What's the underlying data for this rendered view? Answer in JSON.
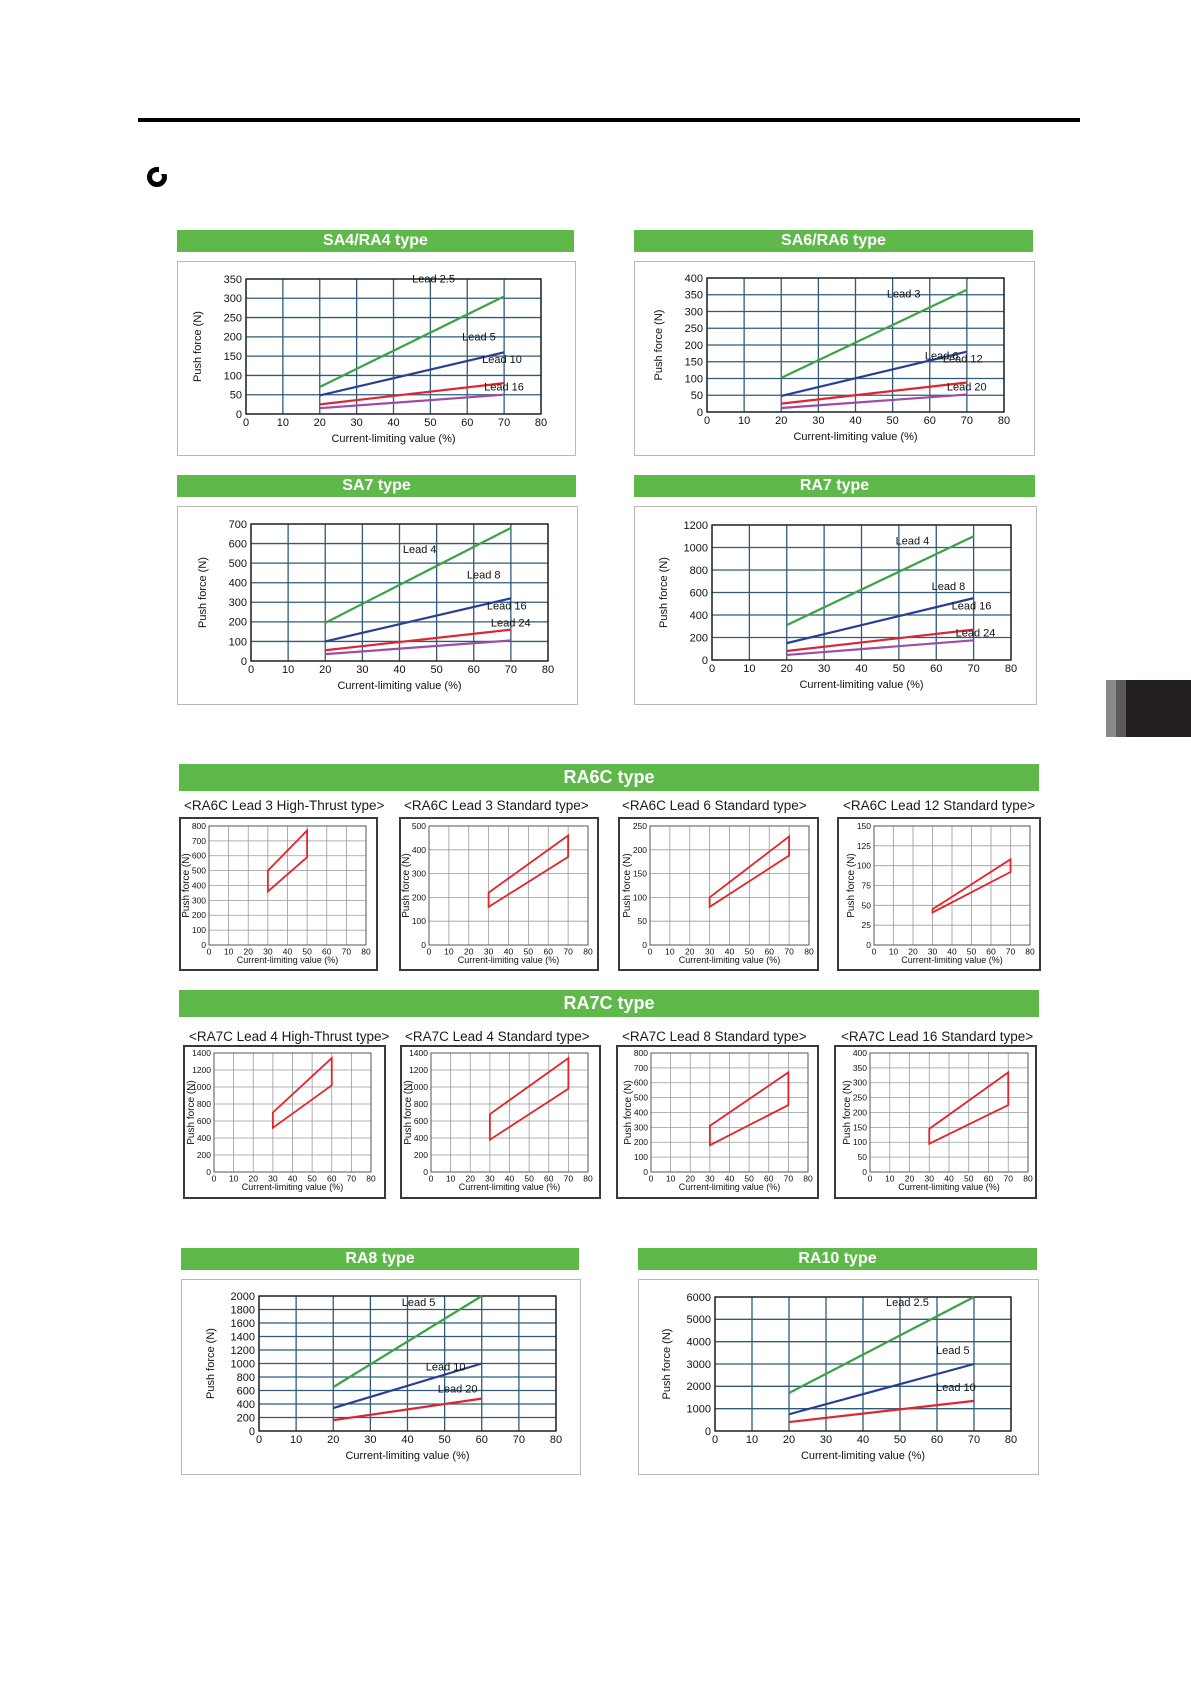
{
  "colors": {
    "green": "#3aa346",
    "blue": "#2a3f93",
    "red": "#dd2631",
    "purple": "#9b4ea3",
    "outline": "#e3242b",
    "grid": "#2f5b79",
    "bar": "#5fb84a"
  },
  "common": {
    "xlabel": "Current-limiting value (%)",
    "ylabel": "Push force (N)"
  },
  "sections": {
    "ra6c": "RA6C type",
    "ra7c": "RA7C type"
  },
  "chart_data": [
    {
      "id": "sa4",
      "title": "SA4/RA4 type",
      "type": "line",
      "xlim": [
        0,
        80
      ],
      "ylim": [
        0,
        350
      ],
      "xticks": [
        0,
        10,
        20,
        30,
        40,
        50,
        60,
        70,
        80
      ],
      "yticks": [
        0,
        50,
        100,
        150,
        200,
        250,
        300,
        350
      ],
      "series": [
        {
          "name": "Lead 2.5",
          "color": "green",
          "x": [
            20,
            70
          ],
          "y": [
            70,
            305
          ]
        },
        {
          "name": "Lead 5",
          "color": "blue",
          "x": [
            20,
            70
          ],
          "y": [
            48,
            160
          ]
        },
        {
          "name": "Lead 10",
          "color": "red",
          "x": [
            20,
            70
          ],
          "y": [
            25,
            80
          ]
        },
        {
          "name": "Lead 16",
          "color": "purple",
          "x": [
            20,
            70
          ],
          "y": [
            15,
            50
          ]
        }
      ]
    },
    {
      "id": "sa6",
      "title": "SA6/RA6 type",
      "type": "line",
      "xlim": [
        0,
        80
      ],
      "ylim": [
        0,
        400
      ],
      "xticks": [
        0,
        10,
        20,
        30,
        40,
        50,
        60,
        70,
        80
      ],
      "yticks": [
        0,
        50,
        100,
        150,
        200,
        250,
        300,
        350,
        400
      ],
      "series": [
        {
          "name": "Lead 3",
          "color": "green",
          "x": [
            20,
            70
          ],
          "y": [
            102,
            365
          ]
        },
        {
          "name": "Lead 6",
          "color": "blue",
          "x": [
            20,
            70
          ],
          "y": [
            48,
            180
          ]
        },
        {
          "name": "Lead 12",
          "color": "red",
          "x": [
            20,
            70
          ],
          "y": [
            25,
            88
          ]
        },
        {
          "name": "Lead 20",
          "color": "purple",
          "x": [
            20,
            70
          ],
          "y": [
            12,
            52
          ]
        }
      ]
    },
    {
      "id": "sa7",
      "title": "SA7 type",
      "type": "line",
      "xlim": [
        0,
        80
      ],
      "ylim": [
        0,
        700
      ],
      "xticks": [
        0,
        10,
        20,
        30,
        40,
        50,
        60,
        70,
        80
      ],
      "yticks": [
        0,
        100,
        200,
        300,
        400,
        500,
        600,
        700
      ],
      "series": [
        {
          "name": "Lead 4",
          "color": "green",
          "x": [
            20,
            70
          ],
          "y": [
            195,
            680
          ]
        },
        {
          "name": "Lead 8",
          "color": "blue",
          "x": [
            20,
            70
          ],
          "y": [
            100,
            320
          ]
        },
        {
          "name": "Lead 16",
          "color": "red",
          "x": [
            20,
            70
          ],
          "y": [
            55,
            160
          ]
        },
        {
          "name": "Lead 24",
          "color": "purple",
          "x": [
            20,
            70
          ],
          "y": [
            35,
            105
          ]
        }
      ]
    },
    {
      "id": "ra7",
      "title": "RA7 type",
      "type": "line",
      "xlim": [
        0,
        80
      ],
      "ylim": [
        0,
        1200
      ],
      "xticks": [
        0,
        10,
        20,
        30,
        40,
        50,
        60,
        70,
        80
      ],
      "yticks": [
        0,
        200,
        400,
        600,
        800,
        1000,
        1200
      ],
      "series": [
        {
          "name": "Lead 4",
          "color": "green",
          "x": [
            20,
            70
          ],
          "y": [
            310,
            1100
          ]
        },
        {
          "name": "Lead 8",
          "color": "blue",
          "x": [
            20,
            70
          ],
          "y": [
            150,
            550
          ]
        },
        {
          "name": "Lead 16",
          "color": "red",
          "x": [
            20,
            70
          ],
          "y": [
            80,
            270
          ]
        },
        {
          "name": "Lead 24",
          "color": "purple",
          "x": [
            20,
            70
          ],
          "y": [
            45,
            175
          ]
        }
      ]
    },
    {
      "id": "ra6c1",
      "title": "<RA6C Lead 3 High-Thrust type>",
      "type": "area",
      "xlim": [
        0,
        80
      ],
      "ylim": [
        0,
        800
      ],
      "xticks": [
        0,
        10,
        20,
        30,
        40,
        50,
        60,
        70,
        80
      ],
      "yticks": [
        0,
        100,
        200,
        300,
        400,
        500,
        600,
        700,
        800
      ],
      "polygon": [
        [
          30,
          360
        ],
        [
          30,
          500
        ],
        [
          50,
          770
        ],
        [
          50,
          590
        ]
      ]
    },
    {
      "id": "ra6c2",
      "title": "<RA6C Lead 3 Standard type>",
      "type": "area",
      "xlim": [
        0,
        80
      ],
      "ylim": [
        0,
        500
      ],
      "xticks": [
        0,
        10,
        20,
        30,
        40,
        50,
        60,
        70,
        80
      ],
      "yticks": [
        0,
        100,
        200,
        300,
        400,
        500
      ],
      "polygon": [
        [
          30,
          160
        ],
        [
          30,
          220
        ],
        [
          70,
          460
        ],
        [
          70,
          370
        ]
      ]
    },
    {
      "id": "ra6c3",
      "title": "<RA6C Lead 6 Standard type>",
      "type": "area",
      "xlim": [
        0,
        80
      ],
      "ylim": [
        0,
        250
      ],
      "xticks": [
        0,
        10,
        20,
        30,
        40,
        50,
        60,
        70,
        80
      ],
      "yticks": [
        0,
        50,
        100,
        150,
        200,
        250
      ],
      "polygon": [
        [
          30,
          80
        ],
        [
          30,
          100
        ],
        [
          70,
          228
        ],
        [
          70,
          188
        ]
      ]
    },
    {
      "id": "ra6c4",
      "title": "<RA6C Lead 12 Standard type>",
      "type": "area",
      "xlim": [
        0,
        80
      ],
      "ylim": [
        0,
        150
      ],
      "xticks": [
        0,
        10,
        20,
        30,
        40,
        50,
        60,
        70,
        80
      ],
      "yticks": [
        0,
        25,
        50,
        75,
        100,
        125,
        150
      ],
      "polygon": [
        [
          30,
          41
        ],
        [
          30,
          45
        ],
        [
          70,
          108
        ],
        [
          70,
          92
        ]
      ]
    },
    {
      "id": "ra7c1",
      "title": "<RA7C Lead 4 High-Thrust type>",
      "type": "area",
      "xlim": [
        0,
        80
      ],
      "ylim": [
        0,
        1400
      ],
      "xticks": [
        0,
        10,
        20,
        30,
        40,
        50,
        60,
        70,
        80
      ],
      "yticks": [
        0,
        200,
        400,
        600,
        800,
        1000,
        1200,
        1400
      ],
      "polygon": [
        [
          30,
          520
        ],
        [
          30,
          700
        ],
        [
          60,
          1340
        ],
        [
          60,
          1020
        ]
      ]
    },
    {
      "id": "ra7c2",
      "title": "<RA7C Lead 4 Standard type>",
      "type": "area",
      "xlim": [
        0,
        80
      ],
      "ylim": [
        0,
        1400
      ],
      "xticks": [
        0,
        10,
        20,
        30,
        40,
        50,
        60,
        70,
        80
      ],
      "yticks": [
        0,
        200,
        400,
        600,
        800,
        1000,
        1200,
        1400
      ],
      "polygon": [
        [
          30,
          380
        ],
        [
          30,
          680
        ],
        [
          70,
          1340
        ],
        [
          70,
          980
        ]
      ]
    },
    {
      "id": "ra7c3",
      "title": "<RA7C Lead 8 Standard type>",
      "type": "area",
      "xlim": [
        0,
        80
      ],
      "ylim": [
        0,
        800
      ],
      "xticks": [
        0,
        10,
        20,
        30,
        40,
        50,
        60,
        70,
        80
      ],
      "yticks": [
        0,
        100,
        200,
        300,
        400,
        500,
        600,
        700,
        800
      ],
      "polygon": [
        [
          30,
          180
        ],
        [
          30,
          310
        ],
        [
          70,
          670
        ],
        [
          70,
          450
        ]
      ]
    },
    {
      "id": "ra7c4",
      "title": "<RA7C Lead 16 Standard type>",
      "type": "area",
      "xlim": [
        0,
        80
      ],
      "ylim": [
        0,
        400
      ],
      "xticks": [
        0,
        10,
        20,
        30,
        40,
        50,
        60,
        70,
        80
      ],
      "yticks": [
        0,
        50,
        100,
        150,
        200,
        250,
        300,
        350,
        400
      ],
      "polygon": [
        [
          30,
          95
        ],
        [
          30,
          145
        ],
        [
          70,
          335
        ],
        [
          70,
          225
        ]
      ]
    },
    {
      "id": "ra8",
      "title": "RA8 type",
      "type": "line",
      "xlim": [
        0,
        80
      ],
      "ylim": [
        0,
        2000
      ],
      "xticks": [
        0,
        10,
        20,
        30,
        40,
        50,
        60,
        70,
        80
      ],
      "yticks": [
        0,
        200,
        400,
        600,
        800,
        1000,
        1200,
        1400,
        1600,
        1800,
        2000
      ],
      "series": [
        {
          "name": "Lead 5",
          "color": "green",
          "x": [
            20,
            60
          ],
          "y": [
            650,
            2000
          ]
        },
        {
          "name": "Lead 10",
          "color": "blue",
          "x": [
            20,
            60
          ],
          "y": [
            340,
            1000
          ]
        },
        {
          "name": "Lead 20",
          "color": "red",
          "x": [
            20,
            60
          ],
          "y": [
            160,
            480
          ]
        }
      ]
    },
    {
      "id": "ra10",
      "title": "RA10 type",
      "type": "line",
      "xlim": [
        0,
        80
      ],
      "ylim": [
        0,
        6000
      ],
      "xticks": [
        0,
        10,
        20,
        30,
        40,
        50,
        60,
        70,
        80
      ],
      "yticks": [
        0,
        1000,
        2000,
        3000,
        4000,
        5000,
        6000
      ],
      "series": [
        {
          "name": "Lead 2.5",
          "color": "green",
          "x": [
            20,
            70
          ],
          "y": [
            1700,
            6000
          ]
        },
        {
          "name": "Lead 5",
          "color": "blue",
          "x": [
            20,
            70
          ],
          "y": [
            750,
            3000
          ]
        },
        {
          "name": "Lead 10",
          "color": "red",
          "x": [
            20,
            70
          ],
          "y": [
            400,
            1350
          ]
        }
      ]
    }
  ]
}
